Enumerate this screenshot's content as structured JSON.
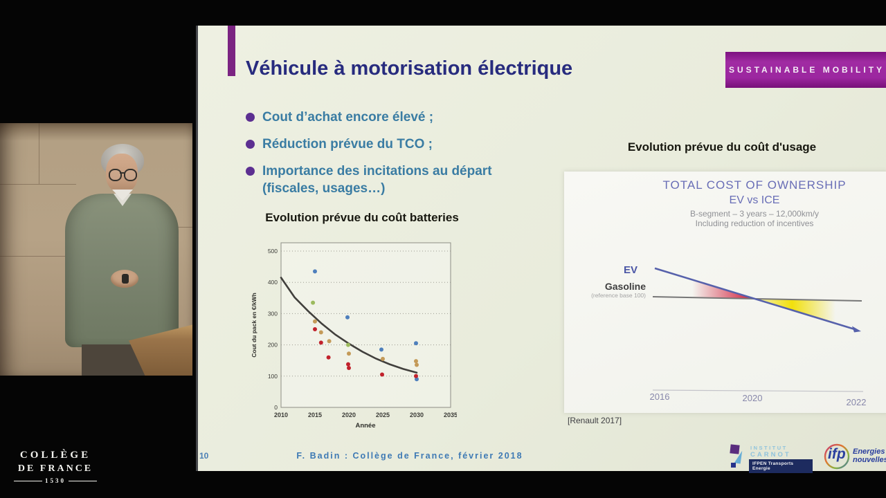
{
  "college_logo": {
    "line1": "COLLÈGE",
    "line2": "DE FRANCE",
    "year": "1530"
  },
  "banner": {
    "label": "SUSTAINABLE MOBILITY",
    "bg": "#9c27a0"
  },
  "slide": {
    "title": "Véhicule à motorisation électrique",
    "bullets": [
      {
        "text": "Cout d’achat encore élevé ;"
      },
      {
        "text": "Réduction prévue du TCO ;"
      },
      {
        "text": "Importance des incitations au départ",
        "text2": "(fiscales, usages…)"
      }
    ],
    "page_number": "10",
    "footer": "F. Badin : Collège de France, février 2018"
  },
  "chart_data": [
    {
      "id": "battery_pack_cost",
      "type": "scatter",
      "title": "Evolution prévue du coût batteries",
      "xlabel": "Année",
      "ylabel": "Cout du pack en €/kWh",
      "xlim": [
        2010,
        2035
      ],
      "ylim": [
        0,
        500
      ],
      "xticks": [
        2010,
        2015,
        2020,
        2025,
        2030,
        2035
      ],
      "yticks": [
        0,
        100,
        200,
        300,
        400,
        500
      ],
      "grid": "horizontal-dotted",
      "legend": "none",
      "series": [
        {
          "name": "estimates-blue",
          "color": "#4e7fbc",
          "points": [
            [
              2015,
              435
            ],
            [
              2019.8,
              288
            ],
            [
              2024.8,
              185
            ],
            [
              2029.9,
              205
            ],
            [
              2030,
              90
            ]
          ]
        },
        {
          "name": "estimates-green",
          "color": "#9cba5d",
          "points": [
            [
              2014.7,
              335
            ],
            [
              2019.9,
              200
            ]
          ]
        },
        {
          "name": "estimates-tan",
          "color": "#c49a58",
          "points": [
            [
              2015,
              275
            ],
            [
              2015.9,
              240
            ],
            [
              2017.1,
              212
            ],
            [
              2020,
              172
            ],
            [
              2025,
              155
            ],
            [
              2029.9,
              148
            ],
            [
              2030,
              136
            ]
          ]
        },
        {
          "name": "estimates-red",
          "color": "#c1222c",
          "points": [
            [
              2015,
              250
            ],
            [
              2015.9,
              207
            ],
            [
              2017,
              160
            ],
            [
              2019.9,
              138
            ],
            [
              2020,
              126
            ],
            [
              2024.9,
              105
            ],
            [
              2029.9,
              100
            ]
          ]
        }
      ],
      "trend": {
        "name": "trend-curve",
        "color": "#413f3c",
        "points": [
          [
            2010,
            415
          ],
          [
            2012,
            352
          ],
          [
            2014,
            308
          ],
          [
            2016,
            268
          ],
          [
            2018,
            233
          ],
          [
            2020,
            204
          ],
          [
            2022,
            178
          ],
          [
            2024,
            156
          ],
          [
            2026,
            138
          ],
          [
            2028,
            123
          ],
          [
            2030,
            111
          ]
        ]
      }
    },
    {
      "id": "tco_ev_vs_ice",
      "type": "line",
      "panel_title": "Evolution prévue du coût d'usage",
      "title": "TOTAL COST OF OWNERSHIP",
      "subtitle": "EV vs ICE",
      "note1": "B-segment – 3 years – 12,000km/y",
      "note2": "Including reduction of incentives",
      "source": "[Renault 2017]",
      "x": [
        2016,
        2022
      ],
      "xticks": [
        "2016",
        "2020",
        "2022"
      ],
      "ylabel_hidden": "cost index, Gasoline = 100",
      "series": [
        {
          "name": "EV",
          "color": "#5661ab",
          "values": [
            130,
            70
          ]
        },
        {
          "name": "Gasoline",
          "sublabel": "(reference base 100)",
          "color": "#767676",
          "values": [
            100,
            100
          ]
        }
      ],
      "crossing": "≈ 2020",
      "highlight_colors": {
        "before_crossing": "#cc0022",
        "after_crossing": "#f2df00"
      }
    }
  ],
  "logos": {
    "carnot": {
      "line1": "INSTITUT",
      "line2": "CARNOT",
      "badge": "IFPEN Transports Energie"
    },
    "ifp": {
      "name": "ifp",
      "line1": "Energies",
      "line2": "nouvelles"
    }
  }
}
